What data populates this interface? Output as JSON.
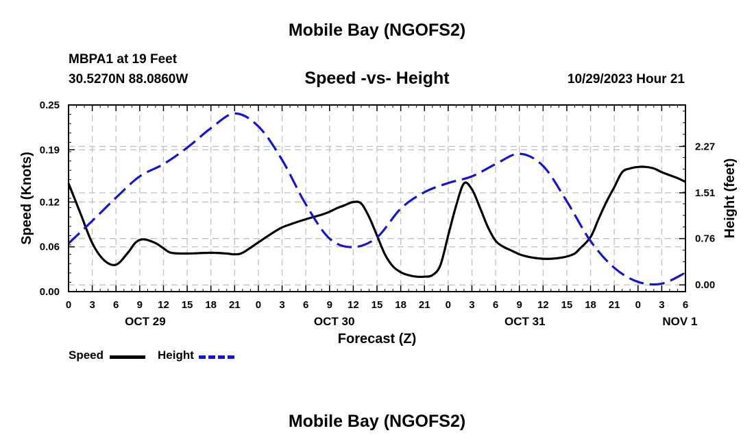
{
  "header": {
    "title": "Mobile Bay (NGOFS2)",
    "station": "MBPA1 at 19 Feet",
    "coords": "30.5270N  88.0860W",
    "subtitle": "Speed -vs- Height",
    "datetime": "10/29/2023 Hour 21",
    "bottom_title": "Mobile Bay (NGOFS2)"
  },
  "legend": {
    "speed_label": "Speed",
    "height_label": "Height"
  },
  "colors": {
    "speed": "#000000",
    "height": "#1515cc",
    "grid": "#c0c0c0"
  },
  "chart_data": {
    "type": "line",
    "title": "Speed -vs- Height",
    "xlabel": "Forecast (Z)",
    "ylabel": "Speed (Knots)",
    "y2label": "Height (feet)",
    "x_range_hours": [
      0,
      78
    ],
    "ylim": [
      0,
      0.25
    ],
    "y2lim": [
      -0.11,
      2.95
    ],
    "x_tick_labels": [
      "0",
      "3",
      "6",
      "9",
      "12",
      "15",
      "18",
      "21",
      "0",
      "3",
      "6",
      "9",
      "12",
      "15",
      "18",
      "21",
      "0",
      "3",
      "6",
      "9",
      "12",
      "15",
      "18",
      "21",
      "0",
      "3",
      "6"
    ],
    "x_tick_hours": [
      0,
      3,
      6,
      9,
      12,
      15,
      18,
      21,
      24,
      27,
      30,
      33,
      36,
      39,
      42,
      45,
      48,
      51,
      54,
      57,
      60,
      63,
      66,
      69,
      72,
      75,
      78
    ],
    "date_labels": [
      {
        "label": "OCT 29",
        "hour": 9.7
      },
      {
        "label": "OCT 30",
        "hour": 33.6
      },
      {
        "label": "OCT 31",
        "hour": 57.7
      },
      {
        "label": "NOV 1",
        "hour": 77.3
      }
    ],
    "y_ticks": [
      0.0,
      0.06,
      0.12,
      0.19,
      0.25
    ],
    "y_tick_labels": [
      "0.00",
      "0.06",
      "0.12",
      "0.19",
      "0.25"
    ],
    "y2_ticks": [
      0.0,
      0.76,
      1.51,
      2.27
    ],
    "y2_tick_labels": [
      "0.00",
      "0.76",
      "1.51",
      "2.27"
    ],
    "series": [
      {
        "name": "Speed",
        "axis": "left",
        "x": [
          0,
          1.5,
          3,
          4.5,
          6,
          7.5,
          8.5,
          9.5,
          11,
          12,
          13,
          15,
          18,
          20,
          21,
          22,
          24,
          26,
          27,
          28,
          30,
          32,
          33,
          34,
          35,
          36,
          37,
          38,
          39,
          40,
          41,
          42,
          43,
          44,
          45,
          46,
          47,
          48,
          49,
          50,
          51,
          52,
          53,
          54,
          55,
          56,
          57,
          58,
          59,
          60,
          61,
          62,
          63,
          64,
          64.5,
          66,
          67,
          68,
          69,
          70,
          71,
          72,
          73,
          74,
          75,
          76,
          77,
          78
        ],
        "values": [
          0.145,
          0.105,
          0.065,
          0.042,
          0.036,
          0.052,
          0.066,
          0.07,
          0.065,
          0.058,
          0.052,
          0.051,
          0.052,
          0.051,
          0.05,
          0.052,
          0.066,
          0.08,
          0.086,
          0.09,
          0.097,
          0.103,
          0.107,
          0.112,
          0.116,
          0.12,
          0.118,
          0.1,
          0.075,
          0.05,
          0.034,
          0.026,
          0.022,
          0.02,
          0.02,
          0.022,
          0.035,
          0.075,
          0.115,
          0.145,
          0.137,
          0.113,
          0.087,
          0.068,
          0.06,
          0.055,
          0.05,
          0.047,
          0.045,
          0.044,
          0.044,
          0.045,
          0.047,
          0.051,
          0.056,
          0.073,
          0.097,
          0.12,
          0.14,
          0.16,
          0.165,
          0.167,
          0.167,
          0.165,
          0.16,
          0.156,
          0.152,
          0.147
        ]
      },
      {
        "name": "Height",
        "axis": "right",
        "x": [
          0,
          3,
          6,
          9,
          12,
          15,
          18,
          21,
          24,
          27,
          30,
          33,
          36,
          39,
          42,
          45,
          48,
          51,
          54,
          57,
          60,
          63,
          66,
          69,
          72,
          75,
          78
        ],
        "values": [
          0.68,
          1.05,
          1.43,
          1.78,
          1.98,
          2.25,
          2.57,
          2.81,
          2.6,
          2.05,
          1.32,
          0.76,
          0.62,
          0.78,
          1.25,
          1.52,
          1.67,
          1.78,
          1.98,
          2.15,
          1.95,
          1.37,
          0.72,
          0.28,
          0.05,
          0.02,
          0.2
        ]
      }
    ]
  }
}
